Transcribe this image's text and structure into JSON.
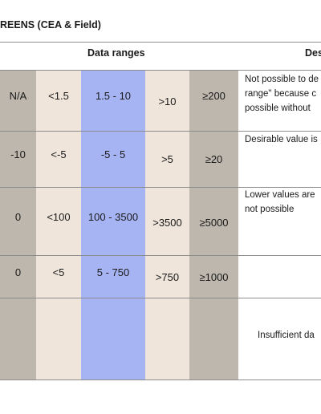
{
  "title": "REENS (CEA & Field)",
  "headers": {
    "data_ranges": "Data ranges",
    "description": "Des"
  },
  "colors": {
    "grey": "#bdb7ad",
    "beige": "#efe5db",
    "blue": "#a7b4f4"
  },
  "rows": [
    {
      "cells": [
        "N/A",
        "<1.5",
        "1.5 - 10",
        ">10",
        "≥200"
      ],
      "desc": [
        "Not possible to de",
        "range\" because c",
        "possible without"
      ]
    },
    {
      "cells": [
        "-10",
        "<-5",
        "-5 - 5",
        ">5",
        "≥20"
      ],
      "desc": [
        "Desirable value is"
      ]
    },
    {
      "cells": [
        "0",
        "<100",
        "100 - 3500",
        ">3500",
        "≥5000"
      ],
      "desc": [
        "Lower values are",
        "not possible"
      ]
    },
    {
      "cells": [
        "0",
        "<5",
        "5 - 750",
        ">750",
        "≥1000"
      ],
      "desc": []
    },
    {
      "cells": [
        "",
        "",
        "",
        "",
        ""
      ],
      "desc": [
        "Insufficient da"
      ]
    }
  ]
}
